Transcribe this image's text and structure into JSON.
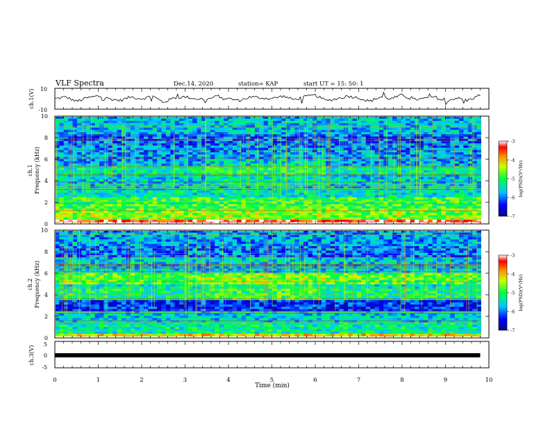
{
  "header": {
    "title": "VLF Spectra",
    "date": "Dec.14, 2020",
    "station": "station= KAP",
    "start": "start  UT =   15: 50: 1"
  },
  "colors": {
    "axis": "#000000",
    "trace": "#000000",
    "spectrogram_low": "#0000ff",
    "spectrogram_mid": "#00ff00",
    "spectrogram_high": "#ff0000"
  },
  "chart_data": [
    {
      "type": "line",
      "id": "ch1-waveform",
      "ylabel": "ch.1(V)",
      "ylim": [
        -10,
        10
      ],
      "yticks": [
        "10",
        "-10"
      ],
      "xlim": [
        0,
        10
      ],
      "x": [
        0,
        0.25,
        0.5,
        0.75,
        1.0,
        1.25,
        1.5,
        1.75,
        2.0,
        2.25,
        2.5,
        2.75,
        3.0,
        3.25,
        3.5,
        3.75,
        4.0,
        4.25,
        4.5,
        4.75,
        5.0,
        5.25,
        5.5,
        5.75,
        6.0,
        6.25,
        6.5,
        6.75,
        7.0,
        7.25,
        7.5,
        7.75,
        8.0,
        8.25,
        8.5,
        8.75,
        9.0,
        9.25,
        9.5,
        9.75
      ],
      "y": [
        0,
        2,
        -3,
        1,
        3,
        0,
        -2,
        2,
        0,
        3,
        -4,
        1,
        2,
        0,
        -1,
        3,
        0,
        -2,
        2,
        1,
        0,
        3,
        -1,
        2,
        4,
        -2,
        0,
        3,
        1,
        -3,
        2,
        0,
        4,
        -1,
        0,
        2,
        -3,
        1,
        -2,
        3
      ]
    },
    {
      "type": "heatmap",
      "id": "ch1-spectrogram",
      "ylabel": "ch.1",
      "ylabel2": "Frequency (kHz)",
      "ylim": [
        0,
        10
      ],
      "yticks": [
        "0",
        "2",
        "4",
        "6",
        "8",
        "10"
      ],
      "xlim": [
        0,
        10
      ],
      "colorbar": {
        "label": "log(PSD)(V²/Hz)",
        "range": [
          -7,
          -3
        ],
        "ticks": [
          "-3",
          "-4",
          "-5",
          "-6",
          "-7"
        ]
      },
      "band_levels": [
        {
          "f": [
            0.0,
            0.5
          ],
          "level": -3.4
        },
        {
          "f": [
            0.5,
            1.5
          ],
          "level": -4.6
        },
        {
          "f": [
            1.5,
            2.4
          ],
          "level": -4.9
        },
        {
          "f": [
            2.4,
            3.4
          ],
          "level": -5.4
        },
        {
          "f": [
            3.4,
            4.6
          ],
          "level": -5.6
        },
        {
          "f": [
            4.6,
            5.4
          ],
          "level": -5.3
        },
        {
          "f": [
            5.4,
            6.6
          ],
          "level": -5.8
        },
        {
          "f": [
            6.6,
            7.4
          ],
          "level": -5.9
        },
        {
          "f": [
            7.4,
            8.4
          ],
          "level": -6.1
        },
        {
          "f": [
            8.4,
            10.0
          ],
          "level": -5.7
        }
      ]
    },
    {
      "type": "heatmap",
      "id": "ch2-spectrogram",
      "ylabel": "ch.2",
      "ylabel2": "Frequency (kHz)",
      "ylim": [
        0,
        10
      ],
      "yticks": [
        "0",
        "2",
        "4",
        "6",
        "8",
        "10"
      ],
      "xlim": [
        0,
        10
      ],
      "colorbar": {
        "label": "log(PSD)(V²/Hz)",
        "range": [
          -7,
          -3
        ],
        "ticks": [
          "-3",
          "-4",
          "-5",
          "-6",
          "-7"
        ]
      },
      "band_levels": [
        {
          "f": [
            0.0,
            0.5
          ],
          "level": -4.2
        },
        {
          "f": [
            0.5,
            1.5
          ],
          "level": -5.3
        },
        {
          "f": [
            1.5,
            2.5
          ],
          "level": -5.6
        },
        {
          "f": [
            2.5,
            3.5
          ],
          "level": -6.3
        },
        {
          "f": [
            3.5,
            4.5
          ],
          "level": -5.2
        },
        {
          "f": [
            4.5,
            5.0
          ],
          "level": -5.4
        },
        {
          "f": [
            5.0,
            6.0
          ],
          "level": -4.8
        },
        {
          "f": [
            6.0,
            7.4
          ],
          "level": -5.6
        },
        {
          "f": [
            7.4,
            8.6
          ],
          "level": -6.0
        },
        {
          "f": [
            8.6,
            10.0
          ],
          "level": -5.8
        }
      ]
    },
    {
      "type": "line",
      "id": "ch3-level",
      "ylabel": "ch.3(V)",
      "ylim": [
        -5,
        5
      ],
      "yticks": [
        "5",
        "0",
        "-5"
      ],
      "xlim": [
        0,
        9.8
      ],
      "x": [
        0,
        9.8
      ],
      "y": [
        0,
        0
      ]
    }
  ],
  "xaxis": {
    "label": "Time (min)",
    "ticks": [
      "0",
      "1",
      "2",
      "3",
      "4",
      "5",
      "6",
      "7",
      "8",
      "9",
      "10"
    ]
  }
}
